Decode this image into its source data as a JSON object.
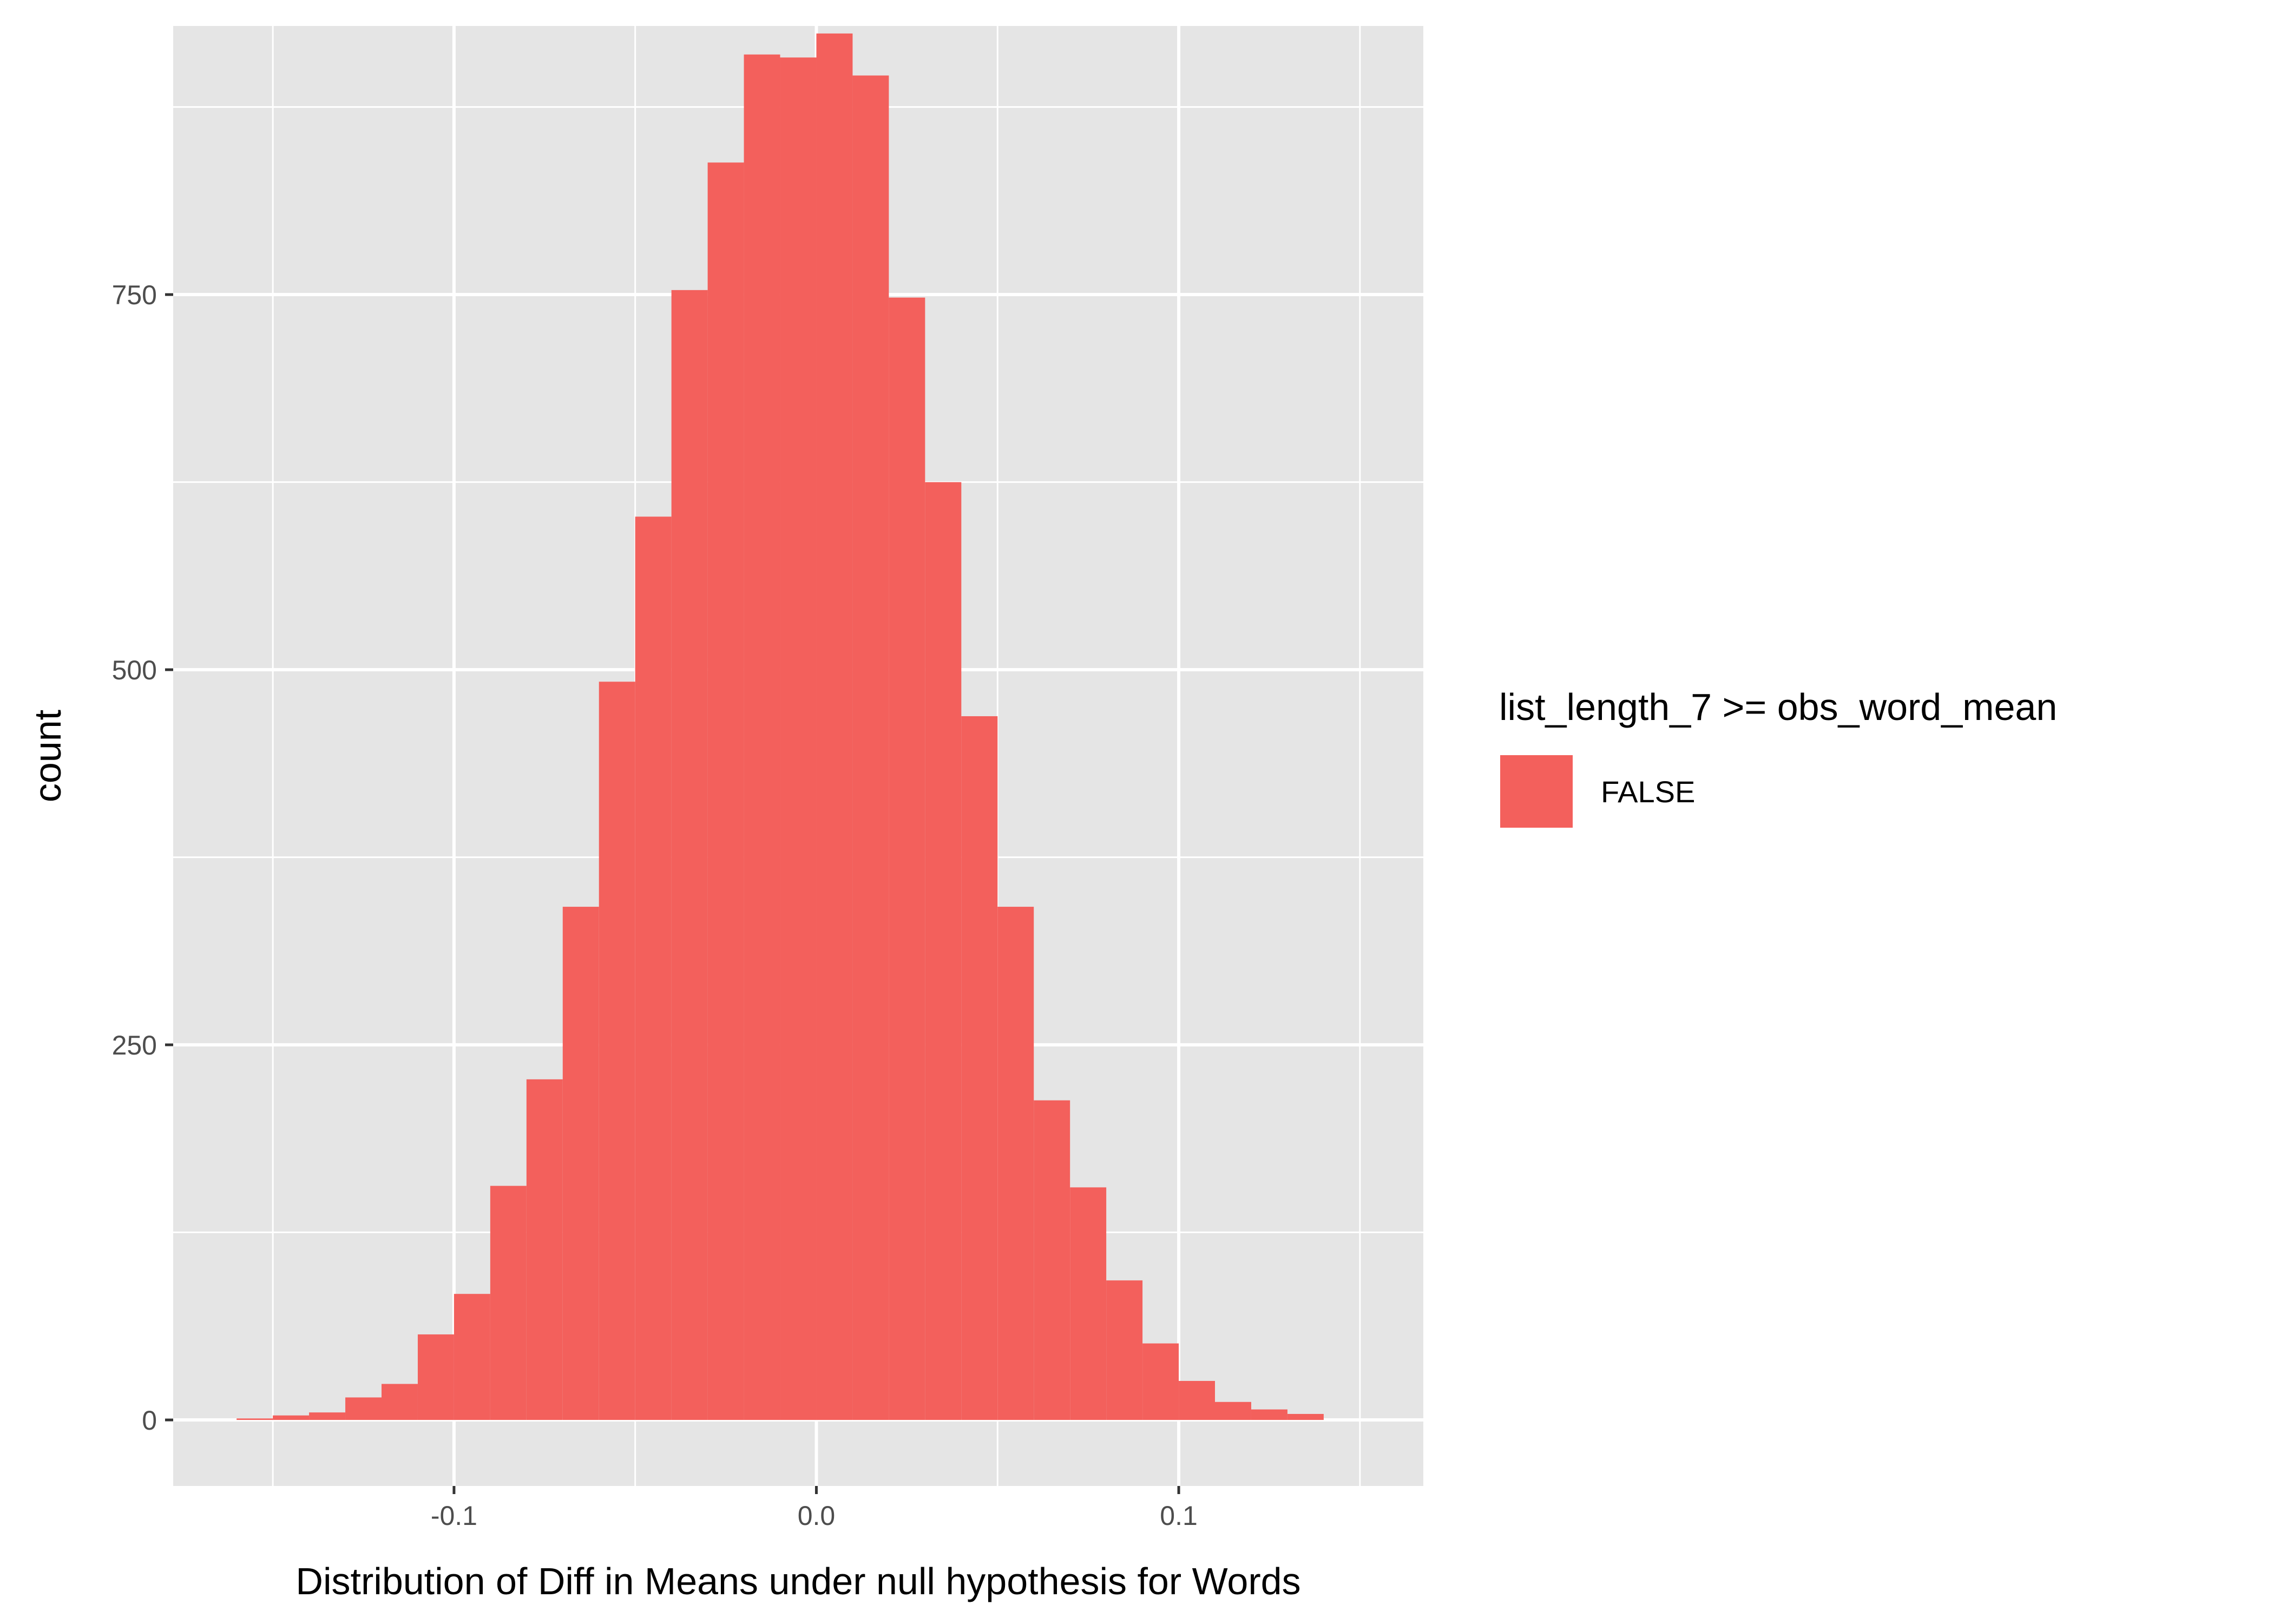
{
  "chart_data": {
    "type": "bar",
    "subtype": "histogram",
    "xlabel": "Distribution of Diff in Means under null hypothesis for Words",
    "ylabel": "count",
    "xlim": [
      -0.1775,
      0.1675
    ],
    "ylim": [
      -44,
      929
    ],
    "x_ticks": [
      -0.1,
      0.0,
      0.1
    ],
    "x_tick_labels": [
      "-0.1",
      "0.0",
      "0.1"
    ],
    "y_ticks": [
      0,
      250,
      500,
      750
    ],
    "y_tick_labels": [
      "0",
      "250",
      "500",
      "750"
    ],
    "x_minor_grid": [
      -0.15,
      -0.05,
      0.05,
      0.15
    ],
    "y_minor_grid": [
      125,
      375,
      625,
      875
    ],
    "grid": true,
    "bin_width": 0.01,
    "bins": [
      {
        "x_min": -0.16,
        "x_max": -0.15,
        "count": 1
      },
      {
        "x_min": -0.15,
        "x_max": -0.14,
        "count": 3
      },
      {
        "x_min": -0.14,
        "x_max": -0.13,
        "count": 5
      },
      {
        "x_min": -0.13,
        "x_max": -0.12,
        "count": 15
      },
      {
        "x_min": -0.12,
        "x_max": -0.11,
        "count": 24
      },
      {
        "x_min": -0.11,
        "x_max": -0.1,
        "count": 57
      },
      {
        "x_min": -0.1,
        "x_max": -0.09,
        "count": 84
      },
      {
        "x_min": -0.09,
        "x_max": -0.08,
        "count": 156
      },
      {
        "x_min": -0.08,
        "x_max": -0.07,
        "count": 227
      },
      {
        "x_min": -0.07,
        "x_max": -0.06,
        "count": 342
      },
      {
        "x_min": -0.06,
        "x_max": -0.05,
        "count": 492
      },
      {
        "x_min": -0.05,
        "x_max": -0.04,
        "count": 602
      },
      {
        "x_min": -0.04,
        "x_max": -0.03,
        "count": 753
      },
      {
        "x_min": -0.03,
        "x_max": -0.02,
        "count": 838
      },
      {
        "x_min": -0.02,
        "x_max": -0.01,
        "count": 910
      },
      {
        "x_min": -0.01,
        "x_max": 0.0,
        "count": 908
      },
      {
        "x_min": 0.0,
        "x_max": 0.01,
        "count": 924
      },
      {
        "x_min": 0.01,
        "x_max": 0.02,
        "count": 896
      },
      {
        "x_min": 0.02,
        "x_max": 0.03,
        "count": 748
      },
      {
        "x_min": 0.03,
        "x_max": 0.04,
        "count": 625
      },
      {
        "x_min": 0.04,
        "x_max": 0.05,
        "count": 469
      },
      {
        "x_min": 0.05,
        "x_max": 0.06,
        "count": 342
      },
      {
        "x_min": 0.06,
        "x_max": 0.07,
        "count": 213
      },
      {
        "x_min": 0.07,
        "x_max": 0.08,
        "count": 155
      },
      {
        "x_min": 0.08,
        "x_max": 0.09,
        "count": 93
      },
      {
        "x_min": 0.09,
        "x_max": 0.1,
        "count": 51
      },
      {
        "x_min": 0.1,
        "x_max": 0.11,
        "count": 26
      },
      {
        "x_min": 0.11,
        "x_max": 0.12,
        "count": 12
      },
      {
        "x_min": 0.12,
        "x_max": 0.13,
        "count": 7
      },
      {
        "x_min": 0.13,
        "x_max": 0.14,
        "count": 4
      }
    ],
    "legend": {
      "title": "list_length_7 >= obs_word_mean",
      "position": "right",
      "items": [
        {
          "label": "FALSE",
          "color": "#f3605c"
        }
      ]
    }
  },
  "colors": {
    "panel_background": "#e5e5e5",
    "grid_line": "#ffffff",
    "bar_fill": "#f3605c",
    "tick_text": "#4d4d4d",
    "axis_tick": "#333333"
  }
}
